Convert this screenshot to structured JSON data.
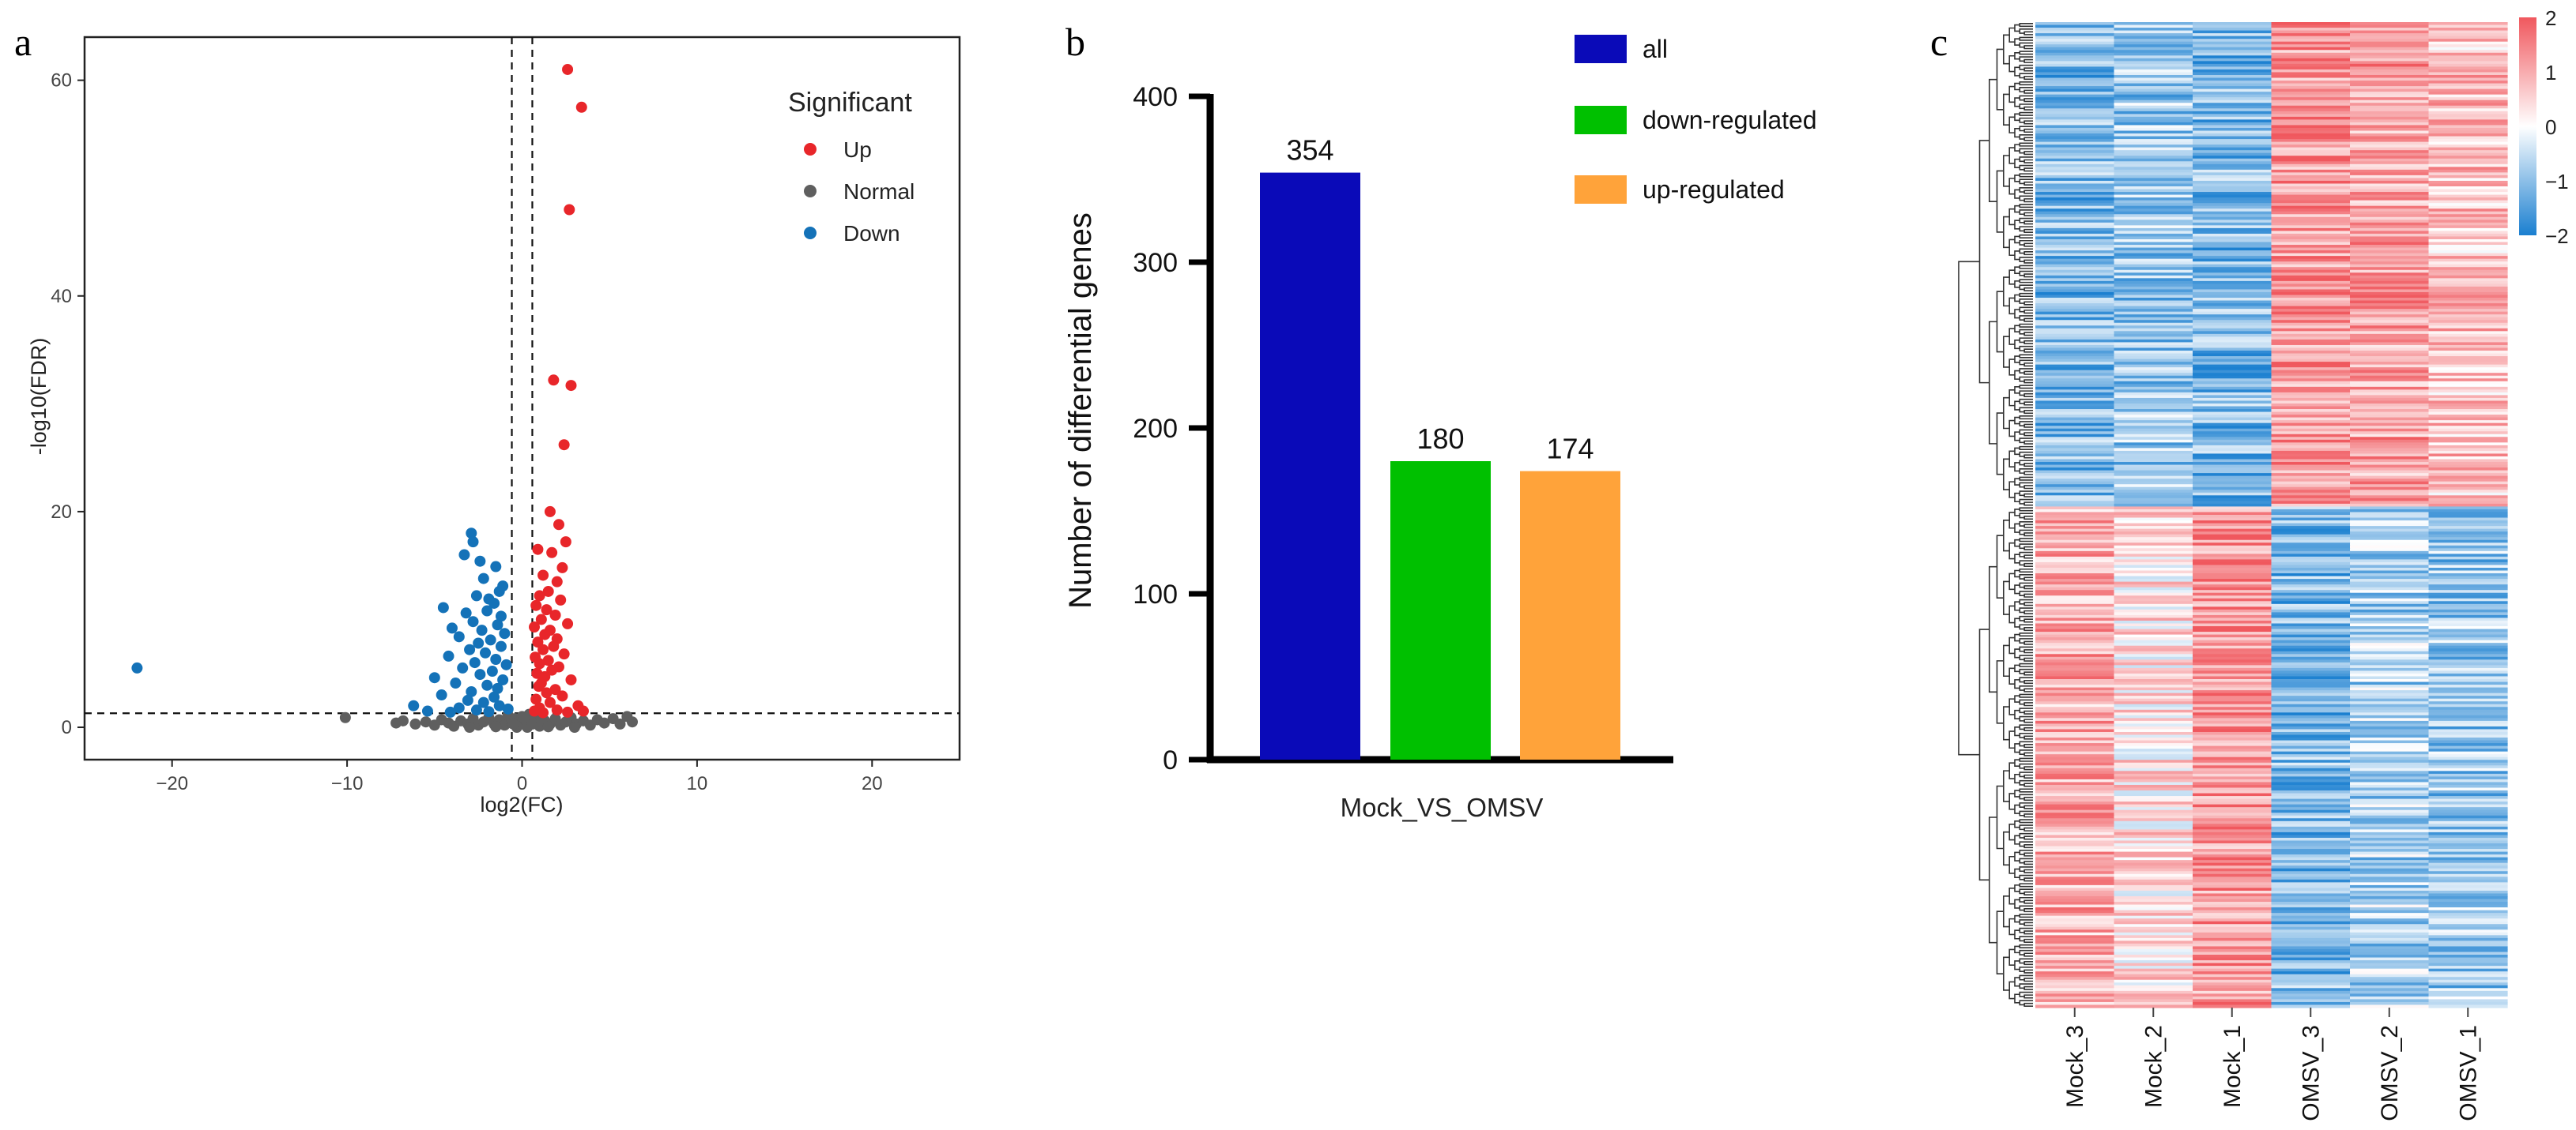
{
  "panels": {
    "a": "a",
    "b": "b",
    "c": "c"
  },
  "chart_data": [
    {
      "type": "scatter",
      "name": "volcano",
      "xlabel": "log2(FC)",
      "ylabel": "-log10(FDR)",
      "xlim": [
        -25,
        25
      ],
      "ylim": [
        -3,
        64
      ],
      "xticks": [
        -20,
        -10,
        0,
        10,
        20
      ],
      "xtick_labels": [
        "−20",
        "−10",
        "0",
        "10",
        "20"
      ],
      "yticks": [
        0,
        20,
        40,
        60
      ],
      "ytick_labels": [
        "0",
        "20",
        "40",
        "60"
      ],
      "thresholds": {
        "vlines": [
          -0.585,
          0.585
        ],
        "hline": 1.3
      },
      "grid": false,
      "legend": {
        "title": "Significant",
        "position": "top-right",
        "entries": [
          {
            "label": "Up",
            "color": "#e8262a"
          },
          {
            "label": "Normal",
            "color": "#5f5f5f"
          },
          {
            "label": "Down",
            "color": "#1472b8"
          }
        ]
      },
      "series": [
        {
          "name": "Up",
          "color": "#e8262a",
          "points": [
            [
              2.6,
              61
            ],
            [
              3.4,
              57.5
            ],
            [
              2.7,
              48
            ],
            [
              1.8,
              32.2
            ],
            [
              2.8,
              31.7
            ],
            [
              2.4,
              26.2
            ],
            [
              1.6,
              20
            ],
            [
              2.1,
              18.8
            ],
            [
              2.5,
              17.2
            ],
            [
              0.9,
              16.5
            ],
            [
              1.7,
              16.2
            ],
            [
              2.3,
              14.8
            ],
            [
              1.2,
              14.1
            ],
            [
              2.0,
              13.5
            ],
            [
              1.5,
              12.6
            ],
            [
              1.0,
              12.2
            ],
            [
              2.2,
              11.8
            ],
            [
              0.8,
              11.3
            ],
            [
              1.4,
              10.9
            ],
            [
              1.9,
              10.4
            ],
            [
              1.1,
              10.0
            ],
            [
              2.6,
              9.6
            ],
            [
              0.7,
              9.3
            ],
            [
              1.6,
              9.0
            ],
            [
              1.3,
              8.6
            ],
            [
              2.0,
              8.2
            ],
            [
              0.9,
              7.9
            ],
            [
              1.8,
              7.5
            ],
            [
              1.2,
              7.2
            ],
            [
              2.4,
              6.8
            ],
            [
              0.75,
              6.5
            ],
            [
              1.5,
              6.2
            ],
            [
              1.0,
              5.9
            ],
            [
              2.1,
              5.6
            ],
            [
              1.7,
              5.3
            ],
            [
              0.85,
              5.0
            ],
            [
              1.3,
              4.7
            ],
            [
              2.8,
              4.4
            ],
            [
              1.1,
              4.1
            ],
            [
              0.95,
              3.8
            ],
            [
              1.9,
              3.5
            ],
            [
              1.4,
              3.2
            ],
            [
              2.3,
              2.9
            ],
            [
              0.8,
              2.6
            ],
            [
              1.6,
              2.3
            ],
            [
              3.2,
              2.0
            ],
            [
              1.0,
              1.8
            ],
            [
              2.0,
              1.6
            ],
            [
              0.7,
              1.5
            ],
            [
              2.6,
              1.4
            ],
            [
              1.2,
              1.35
            ],
            [
              3.5,
              1.5
            ]
          ]
        },
        {
          "name": "Down",
          "color": "#1472b8",
          "points": [
            [
              -22,
              5.5
            ],
            [
              -2.9,
              18
            ],
            [
              -2.8,
              17.2
            ],
            [
              -3.3,
              16
            ],
            [
              -2.4,
              15.4
            ],
            [
              -1.5,
              14.9
            ],
            [
              -2.2,
              13.8
            ],
            [
              -1.1,
              13.1
            ],
            [
              -1.3,
              12.6
            ],
            [
              -2.6,
              12.2
            ],
            [
              -1.9,
              11.9
            ],
            [
              -4.5,
              11.1
            ],
            [
              -1.6,
              11.5
            ],
            [
              -2.0,
              10.8
            ],
            [
              -3.2,
              10.6
            ],
            [
              -1.2,
              10.3
            ],
            [
              -2.8,
              9.8
            ],
            [
              -1.4,
              9.5
            ],
            [
              -4.0,
              9.2
            ],
            [
              -2.3,
              9.0
            ],
            [
              -1.0,
              8.7
            ],
            [
              -3.6,
              8.4
            ],
            [
              -1.8,
              8.1
            ],
            [
              -2.5,
              7.8
            ],
            [
              -1.2,
              7.5
            ],
            [
              -3.0,
              7.2
            ],
            [
              -2.1,
              6.9
            ],
            [
              -4.2,
              6.6
            ],
            [
              -1.5,
              6.3
            ],
            [
              -2.7,
              6.0
            ],
            [
              -0.9,
              5.8
            ],
            [
              -3.4,
              5.5
            ],
            [
              -1.7,
              5.2
            ],
            [
              -2.4,
              4.9
            ],
            [
              -5.0,
              4.6
            ],
            [
              -1.1,
              4.4
            ],
            [
              -3.8,
              4.1
            ],
            [
              -2.0,
              3.9
            ],
            [
              -1.4,
              3.6
            ],
            [
              -2.9,
              3.3
            ],
            [
              -4.6,
              3.0
            ],
            [
              -1.6,
              2.8
            ],
            [
              -3.1,
              2.5
            ],
            [
              -2.2,
              2.3
            ],
            [
              -6.2,
              2.0
            ],
            [
              -1.3,
              2.0
            ],
            [
              -3.6,
              1.8
            ],
            [
              -2.6,
              1.6
            ],
            [
              -5.4,
              1.5
            ],
            [
              -0.8,
              1.7
            ],
            [
              -1.9,
              1.45
            ],
            [
              -4.1,
              1.4
            ]
          ]
        },
        {
          "name": "Normal",
          "color": "#5f5f5f",
          "points": [
            [
              -10.1,
              0.9
            ],
            [
              -7.2,
              0.4
            ],
            [
              -6.8,
              0.6
            ],
            [
              -6.1,
              0.3
            ],
            [
              -5.5,
              0.5
            ],
            [
              -5.0,
              0.2
            ],
            [
              -4.6,
              0.7
            ],
            [
              -4.2,
              0.4
            ],
            [
              -3.9,
              0.1
            ],
            [
              -3.5,
              0.6
            ],
            [
              -3.1,
              0.3
            ],
            [
              -2.8,
              0.8
            ],
            [
              -2.5,
              0.2
            ],
            [
              -2.2,
              0.5
            ],
            [
              -1.9,
              0.9
            ],
            [
              -1.6,
              0.3
            ],
            [
              -1.3,
              0.7
            ],
            [
              -1.0,
              0.2
            ],
            [
              -0.8,
              1.1
            ],
            [
              -0.6,
              0.4
            ],
            [
              -0.4,
              0.8
            ],
            [
              -0.2,
              0.2
            ],
            [
              0.0,
              1.0
            ],
            [
              0.2,
              0.5
            ],
            [
              0.4,
              1.2
            ],
            [
              0.6,
              0.3
            ],
            [
              0.8,
              0.7
            ],
            [
              1.0,
              0.1
            ],
            [
              1.3,
              0.6
            ],
            [
              1.6,
              0.3
            ],
            [
              1.9,
              0.8
            ],
            [
              2.2,
              0.2
            ],
            [
              2.5,
              0.5
            ],
            [
              2.8,
              0.9
            ],
            [
              3.1,
              0.3
            ],
            [
              3.5,
              0.6
            ],
            [
              3.9,
              0.2
            ],
            [
              4.3,
              0.7
            ],
            [
              4.7,
              0.4
            ],
            [
              5.2,
              0.8
            ],
            [
              5.6,
              0.3
            ],
            [
              6.0,
              1.0
            ],
            [
              6.3,
              0.5
            ],
            [
              -0.3,
              0.0
            ],
            [
              0.3,
              0.0
            ],
            [
              -1.5,
              0.05
            ],
            [
              1.5,
              0.05
            ],
            [
              -3.0,
              0.0
            ],
            [
              3.0,
              0.0
            ],
            [
              -0.5,
              0.3
            ],
            [
              0.5,
              0.6
            ],
            [
              0.1,
              0.9
            ]
          ]
        }
      ]
    },
    {
      "type": "bar",
      "name": "deg-counts",
      "categories": [
        "all",
        "down-regulated",
        "up-regulated"
      ],
      "values": [
        354,
        180,
        174
      ],
      "colors": [
        "#0a0ab8",
        "#00c000",
        "#ffa33a"
      ],
      "value_labels": [
        "354",
        "180",
        "174"
      ],
      "title": "",
      "xlabel": "Mock_VS_OMSV",
      "ylabel": "Number  of differential genes",
      "ylim": [
        0,
        400
      ],
      "yticks": [
        0,
        100,
        200,
        300,
        400
      ],
      "ytick_labels": [
        "0",
        "100",
        "200",
        "300",
        "400"
      ],
      "legend": {
        "position": "top-right",
        "entries": [
          {
            "label": "all",
            "color": "#0a0ab8"
          },
          {
            "label": "down-regulated",
            "color": "#00c000"
          },
          {
            "label": "up-regulated",
            "color": "#ffa33a"
          }
        ]
      }
    },
    {
      "type": "heatmap",
      "name": "deg-heatmap",
      "columns": [
        "Mock_3",
        "Mock_2",
        "Mock_1",
        "OMSV_3",
        "OMSV_2",
        "OMSV_1"
      ],
      "row_count": 354,
      "clusters": [
        {
          "name": "higher-in-OMSV",
          "rows": 174,
          "mean_z": [
            -0.9,
            -0.7,
            -0.9,
            1.0,
            0.9,
            0.6
          ]
        },
        {
          "name": "higher-in-Mock",
          "rows": 180,
          "mean_z": [
            0.8,
            0.3,
            1.0,
            -0.9,
            -0.6,
            -0.7
          ]
        }
      ],
      "colorbar": {
        "min": -2,
        "max": 2,
        "ticks": [
          2,
          1,
          0,
          -1,
          -2
        ],
        "tick_labels": [
          "2",
          "1",
          "0",
          "−1",
          "−2"
        ],
        "low_color": "#1a7fd0",
        "mid_color": "#ffffff",
        "high_color": "#f0585e"
      },
      "dendrogram": "left"
    }
  ]
}
